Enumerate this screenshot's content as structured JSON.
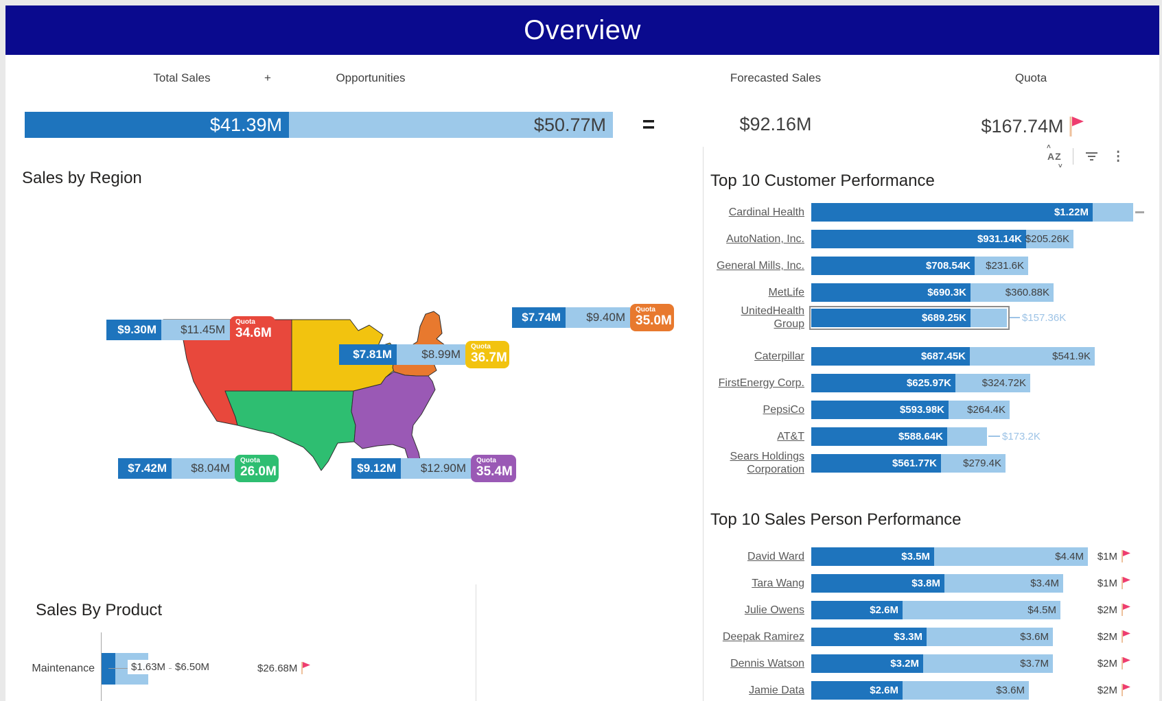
{
  "header": {
    "title": "Overview",
    "bg_color": "#0a0a8e"
  },
  "toolbar": {
    "icons": [
      "sort-az",
      "filter",
      "more-options"
    ]
  },
  "colors": {
    "bar_dark": "#1e74bd",
    "bar_light": "#9dc9ea",
    "flag_pink": "#ee3d6f",
    "callout_text": "#9dc3e6",
    "header_navy": "#0a0a8e"
  },
  "chart_data": [
    {
      "id": "kpi",
      "type": "bar",
      "title": "Sales KPI strip",
      "unit": "$M",
      "categories": [
        "Total Sales",
        "Opportunities",
        "Forecasted Sales",
        "Quota"
      ],
      "values": [
        41.39,
        50.77,
        92.16,
        167.74
      ],
      "labels": [
        "$41.39M",
        "$50.77M",
        "$92.16M",
        "$167.74M"
      ],
      "operators": [
        "+",
        "="
      ],
      "quota_flag": true
    },
    {
      "id": "regions",
      "type": "map",
      "title": "Sales by Region",
      "unit": "$M",
      "regions": [
        {
          "name": "West",
          "color": "#e8483c",
          "sales_label": "$9.30M",
          "sales_m": 9.3,
          "opp_label": "$11.45M",
          "opp_m": 11.45,
          "quota_caption": "Quota",
          "quota_label": "34.6M",
          "quota_m": 34.6
        },
        {
          "name": "Central",
          "color": "#f2c30f",
          "sales_label": "$7.81M",
          "sales_m": 7.81,
          "opp_label": "$8.99M",
          "opp_m": 8.99,
          "quota_caption": "Quota",
          "quota_label": "36.7M",
          "quota_m": 36.7
        },
        {
          "name": "Northeast",
          "color": "#e8792e",
          "sales_label": "$7.74M",
          "sales_m": 7.74,
          "opp_label": "$9.40M",
          "opp_m": 9.4,
          "quota_caption": "Quota",
          "quota_label": "35.0M",
          "quota_m": 35.0
        },
        {
          "name": "South",
          "color": "#2ebe71",
          "sales_label": "$7.42M",
          "sales_m": 7.42,
          "opp_label": "$8.04M",
          "opp_m": 8.04,
          "quota_caption": "Quota",
          "quota_label": "26.0M",
          "quota_m": 26.0
        },
        {
          "name": "Southeast",
          "color": "#9a59b5",
          "sales_label": "$9.12M",
          "sales_m": 9.12,
          "opp_label": "$12.90M",
          "opp_m": 12.9,
          "quota_caption": "Quota",
          "quota_label": "35.4M",
          "quota_m": 35.4
        }
      ]
    },
    {
      "id": "customers",
      "type": "bar",
      "subtype": "bullet",
      "title": "Top 10 Customer Performance",
      "unit": "$K",
      "rows": [
        {
          "name": "Cardinal Health",
          "sales_label": "$1.22M",
          "sales_k": 1220,
          "opp_label": "",
          "opp_k": 175,
          "target_dash": true
        },
        {
          "name": "AutoNation, Inc.",
          "sales_label": "$931.14K",
          "sales_k": 931.14,
          "opp_label": "$205.26K",
          "opp_k": 205.26
        },
        {
          "name": "General Mills, Inc.",
          "sales_label": "$708.54K",
          "sales_k": 708.54,
          "opp_label": "$231.6K",
          "opp_k": 231.6
        },
        {
          "name": "MetLife",
          "sales_label": "$690.3K",
          "sales_k": 690.3,
          "opp_label": "$360.88K",
          "opp_k": 360.88
        },
        {
          "name": "UnitedHealth Group",
          "name_lines": [
            "UnitedHealth",
            "Group"
          ],
          "sales_label": "$689.25K",
          "sales_k": 689.25,
          "opp_label": "$157.36K",
          "opp_k": 157.36,
          "callout": true,
          "selected": true
        },
        {
          "name": "Caterpillar",
          "sales_label": "$687.45K",
          "sales_k": 687.45,
          "opp_label": "$541.9K",
          "opp_k": 541.9
        },
        {
          "name": "FirstEnergy Corp.",
          "sales_label": "$625.97K",
          "sales_k": 625.97,
          "opp_label": "$324.72K",
          "opp_k": 324.72
        },
        {
          "name": "PepsiCo",
          "sales_label": "$593.98K",
          "sales_k": 593.98,
          "opp_label": "$264.4K",
          "opp_k": 264.4
        },
        {
          "name": "AT&T",
          "sales_label": "$588.64K",
          "sales_k": 588.64,
          "opp_label": "$173.2K",
          "opp_k": 173.2,
          "callout": true
        },
        {
          "name": "Sears Holdings Corporation",
          "name_lines": [
            "Sears Holdings",
            "Corporation"
          ],
          "sales_label": "$561.77K",
          "sales_k": 561.77,
          "opp_label": "$279.4K",
          "opp_k": 279.4
        }
      ]
    },
    {
      "id": "salespeople",
      "type": "bar",
      "subtype": "bullet",
      "title": "Top 10 Sales Person Performance",
      "unit": "$M",
      "rows": [
        {
          "name": "David Ward",
          "sales_label": "$3.5M",
          "sales_m": 3.5,
          "opp_label": "$4.4M",
          "opp_m": 4.4,
          "quota_label": "$1M"
        },
        {
          "name": "Tara Wang",
          "sales_label": "$3.8M",
          "sales_m": 3.8,
          "opp_label": "$3.4M",
          "opp_m": 3.4,
          "quota_label": "$1M"
        },
        {
          "name": "Julie Owens",
          "sales_label": "$2.6M",
          "sales_m": 2.6,
          "opp_label": "$4.5M",
          "opp_m": 4.5,
          "quota_label": "$2M"
        },
        {
          "name": "Deepak Ramirez",
          "sales_label": "$3.3M",
          "sales_m": 3.3,
          "opp_label": "$3.6M",
          "opp_m": 3.6,
          "quota_label": "$2M"
        },
        {
          "name": "Dennis Watson",
          "sales_label": "$3.2M",
          "sales_m": 3.2,
          "opp_label": "$3.7M",
          "opp_m": 3.7,
          "quota_label": "$2M"
        },
        {
          "name": "Jamie Data",
          "sales_label": "$2.6M",
          "sales_m": 2.6,
          "opp_label": "$3.6M",
          "opp_m": 3.6,
          "quota_label": "$2M"
        }
      ]
    },
    {
      "id": "product",
      "type": "bar",
      "subtype": "bullet",
      "title": "Sales By Product",
      "unit": "$M",
      "rows": [
        {
          "name": "Maintenance",
          "sales_label": "$1.63M",
          "sales_m": 1.63,
          "opp_label": "$6.50M",
          "opp_m": 6.5,
          "quota_label": "$26.68M",
          "quota_m": 26.68
        }
      ]
    }
  ]
}
